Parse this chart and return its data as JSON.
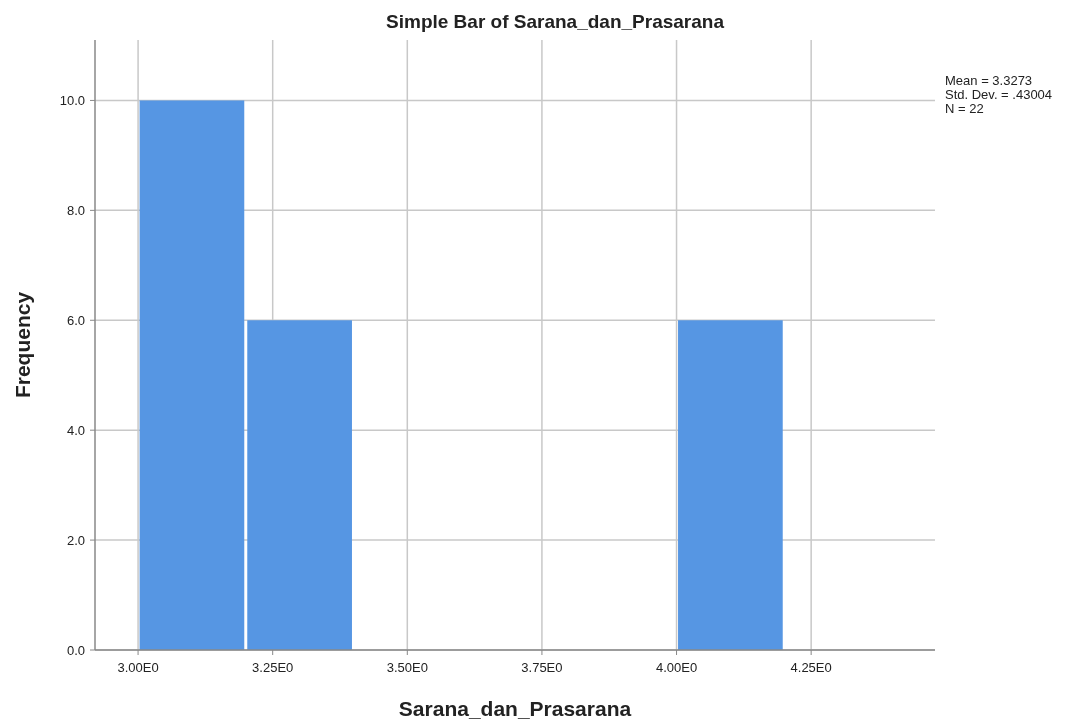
{
  "chart_data": {
    "type": "histogram",
    "title": "Simple Bar of Sarana_dan_Prasarana",
    "xlabel": "Sarana_dan_Prasarana",
    "ylabel": "Frequency",
    "bins": [
      3.0,
      3.2,
      3.4,
      3.6,
      3.8,
      4.0,
      4.2
    ],
    "values": [
      10,
      6,
      0,
      0,
      0,
      6
    ],
    "color": "#5696e3",
    "xlim": [
      2.92,
      4.48
    ],
    "xticks": [
      {
        "value": 3.0,
        "label": "3.00E0"
      },
      {
        "value": 3.25,
        "label": "3.25E0"
      },
      {
        "value": 3.5,
        "label": "3.50E0"
      },
      {
        "value": 3.75,
        "label": "3.75E0"
      },
      {
        "value": 4.0,
        "label": "4.00E0"
      },
      {
        "value": 4.25,
        "label": "4.25E0"
      }
    ],
    "ylim": [
      0,
      11.1
    ],
    "yticks": [
      {
        "value": 0,
        "label": "0.0"
      },
      {
        "value": 2,
        "label": "2.0"
      },
      {
        "value": 4,
        "label": "4.0"
      },
      {
        "value": 6,
        "label": "6.0"
      },
      {
        "value": 8,
        "label": "8.0"
      },
      {
        "value": 10,
        "label": "10.0"
      }
    ],
    "grid": true,
    "annotations": [
      "Mean = 3.3273",
      "Std. Dev. = .43004",
      "N = 22"
    ]
  }
}
